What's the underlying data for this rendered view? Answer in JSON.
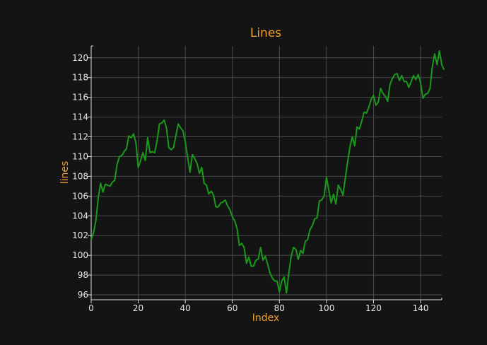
{
  "chart_data": {
    "type": "line",
    "title": "Lines",
    "xlabel": "Index",
    "ylabel": "lines",
    "xlim": [
      0,
      149
    ],
    "ylim": [
      95.5,
      121.2
    ],
    "x_ticks": [
      0,
      20,
      40,
      60,
      80,
      100,
      120,
      140
    ],
    "y_ticks": [
      96,
      98,
      100,
      102,
      104,
      106,
      108,
      110,
      112,
      114,
      116,
      118,
      120
    ],
    "grid": true,
    "colors": {
      "background": "#141414",
      "text": "#f0a030",
      "line": "#1a9a1a",
      "grid": "#4a4a4a"
    },
    "series": [
      {
        "values": [
          101.6,
          102.3,
          103.5,
          105.8,
          107.3,
          106.4,
          107.2,
          107.1,
          107.0,
          107.4,
          107.6,
          109.2,
          110.0,
          110.1,
          110.5,
          110.8,
          112.1,
          111.9,
          112.3,
          111.4,
          108.9,
          109.6,
          110.4,
          109.6,
          111.9,
          110.4,
          110.5,
          110.4,
          111.6,
          113.3,
          113.4,
          113.7,
          112.9,
          110.9,
          110.7,
          110.9,
          112.1,
          113.3,
          112.9,
          112.6,
          111.5,
          109.9,
          108.4,
          110.2,
          109.8,
          109.3,
          108.3,
          108.9,
          107.3,
          107.1,
          106.2,
          106.5,
          106.1,
          104.9,
          104.9,
          105.3,
          105.4,
          105.6,
          105.0,
          104.6,
          103.9,
          103.5,
          102.7,
          101.0,
          101.2,
          100.8,
          99.2,
          99.8,
          98.9,
          98.9,
          99.5,
          99.6,
          100.8,
          99.5,
          99.9,
          99.1,
          98.2,
          97.7,
          97.4,
          97.4,
          96.3,
          97.4,
          97.8,
          96.2,
          98.2,
          99.9,
          100.8,
          100.6,
          99.6,
          100.5,
          100.2,
          101.4,
          101.6,
          102.6,
          103.0,
          103.7,
          103.8,
          105.5,
          105.6,
          106.0,
          107.9,
          106.6,
          105.3,
          106.2,
          105.2,
          107.1,
          106.7,
          106.1,
          107.8,
          109.5,
          111.0,
          112.0,
          111.1,
          113.0,
          112.8,
          113.6,
          114.5,
          114.4,
          115.0,
          115.8,
          116.2,
          115.2,
          115.5,
          116.9,
          116.4,
          116.1,
          115.6,
          117.3,
          117.9,
          118.3,
          118.4,
          117.7,
          118.2,
          117.6,
          117.6,
          117.0,
          117.6,
          118.2,
          117.8,
          118.3,
          117.5,
          115.9,
          116.3,
          116.4,
          116.9,
          119.1,
          120.4,
          119.3,
          120.7,
          119.3,
          118.8
        ]
      }
    ]
  }
}
